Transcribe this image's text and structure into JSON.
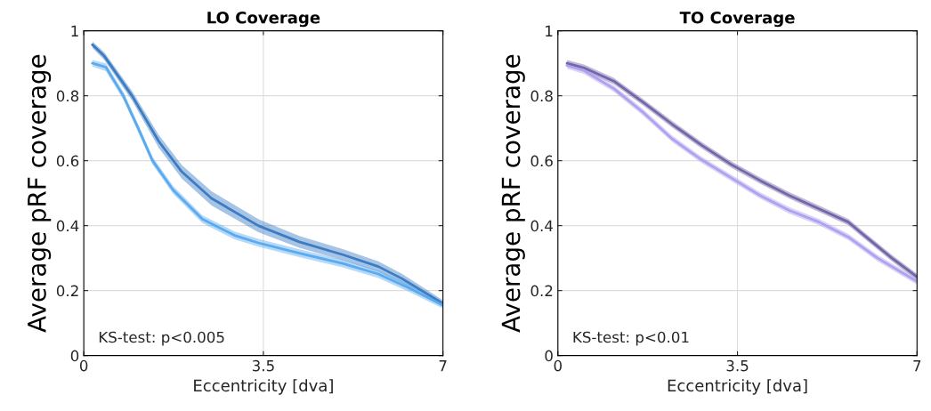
{
  "chart_data": [
    {
      "type": "line",
      "title": "LO Coverage",
      "xlabel": "Eccentricity [dva]",
      "ylabel": "Average pRF coverage",
      "annotations": [
        "KS-test: p<0.005"
      ],
      "xlim": [
        0,
        7
      ],
      "xticks": [
        0,
        3.5,
        7
      ],
      "ylim": [
        0,
        1
      ],
      "yticks": [
        0,
        0.2,
        0.4,
        0.6,
        0.8,
        1
      ],
      "grid": true,
      "series": [
        {
          "color": "#3c7cc4",
          "x": [
            0.17,
            0.4,
            0.94,
            1.46,
            1.91,
            2.49,
            3.4,
            4.2,
            5.06,
            5.74,
            6.2,
            7.0
          ],
          "values": [
            0.957,
            0.922,
            0.8,
            0.66,
            0.566,
            0.484,
            0.4,
            0.35,
            0.31,
            0.274,
            0.237,
            0.16
          ],
          "lower": [
            0.947,
            0.91,
            0.785,
            0.64,
            0.545,
            0.462,
            0.38,
            0.332,
            0.293,
            0.258,
            0.222,
            0.15
          ],
          "upper": [
            0.967,
            0.934,
            0.815,
            0.68,
            0.587,
            0.506,
            0.42,
            0.368,
            0.327,
            0.29,
            0.252,
            0.17
          ]
        },
        {
          "color": "#5aaaf0",
          "x": [
            0.17,
            0.43,
            0.77,
            1.06,
            1.34,
            1.74,
            2.31,
            2.94,
            3.4,
            4.2,
            5.06,
            5.74,
            6.31,
            7.0
          ],
          "values": [
            0.9,
            0.888,
            0.8,
            0.7,
            0.6,
            0.51,
            0.42,
            0.37,
            0.347,
            0.315,
            0.283,
            0.251,
            0.21,
            0.155
          ],
          "lower": [
            0.89,
            0.876,
            0.788,
            0.688,
            0.588,
            0.498,
            0.408,
            0.358,
            0.335,
            0.303,
            0.271,
            0.239,
            0.198,
            0.145
          ],
          "upper": [
            0.91,
            0.9,
            0.812,
            0.712,
            0.612,
            0.522,
            0.432,
            0.382,
            0.359,
            0.327,
            0.295,
            0.263,
            0.222,
            0.165
          ]
        }
      ]
    },
    {
      "type": "line",
      "title": "TO Coverage",
      "xlabel": "Eccentricity [dva]",
      "ylabel": "Average pRF coverage",
      "annotations": [
        "KS-test: p<0.01"
      ],
      "xlim": [
        0,
        7
      ],
      "xticks": [
        0,
        3.5,
        7
      ],
      "ylim": [
        0,
        1
      ],
      "yticks": [
        0,
        0.2,
        0.4,
        0.6,
        0.8,
        1
      ],
      "grid": true,
      "series": [
        {
          "color": "#7466a8",
          "x": [
            0.18,
            0.51,
            1.09,
            1.66,
            2.23,
            2.8,
            3.37,
            3.94,
            4.51,
            5.09,
            5.66,
            5.94,
            6.51,
            7.0
          ],
          "values": [
            0.9,
            0.886,
            0.845,
            0.78,
            0.712,
            0.648,
            0.589,
            0.539,
            0.493,
            0.452,
            0.411,
            0.374,
            0.3,
            0.242
          ],
          "lower": [
            0.89,
            0.876,
            0.835,
            0.77,
            0.702,
            0.638,
            0.579,
            0.529,
            0.483,
            0.442,
            0.401,
            0.364,
            0.29,
            0.232
          ],
          "upper": [
            0.91,
            0.896,
            0.855,
            0.79,
            0.722,
            0.658,
            0.599,
            0.549,
            0.503,
            0.462,
            0.421,
            0.384,
            0.31,
            0.252
          ]
        },
        {
          "color": "#b0a0f0",
          "x": [
            0.18,
            0.51,
            1.09,
            1.66,
            2.23,
            2.8,
            3.37,
            3.94,
            4.51,
            5.09,
            5.66,
            6.23,
            7.0
          ],
          "values": [
            0.893,
            0.877,
            0.822,
            0.749,
            0.667,
            0.603,
            0.548,
            0.493,
            0.447,
            0.411,
            0.365,
            0.3,
            0.228
          ],
          "lower": [
            0.883,
            0.867,
            0.812,
            0.739,
            0.657,
            0.593,
            0.538,
            0.483,
            0.437,
            0.401,
            0.355,
            0.29,
            0.218
          ],
          "upper": [
            0.903,
            0.887,
            0.832,
            0.759,
            0.677,
            0.613,
            0.558,
            0.503,
            0.457,
            0.421,
            0.375,
            0.31,
            0.238
          ]
        }
      ]
    }
  ]
}
